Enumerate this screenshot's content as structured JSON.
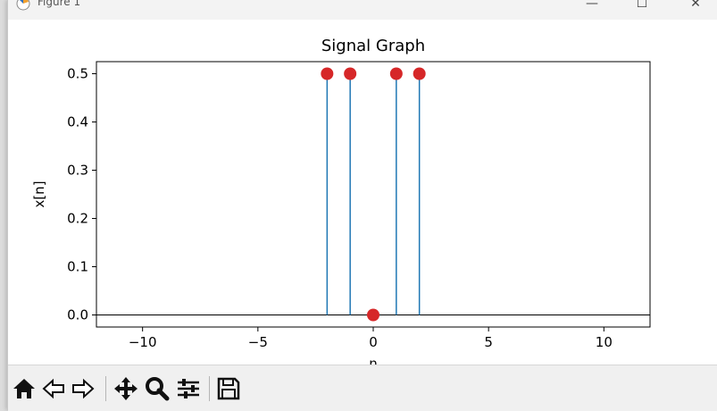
{
  "window": {
    "title": "Figure 1",
    "minimize_glyph": "—",
    "maximize_glyph": "☐",
    "close_glyph": "✕"
  },
  "toolbar": {
    "icons": [
      "home-icon",
      "back-icon",
      "forward-icon",
      "pan-icon",
      "zoom-icon",
      "configure-subplots-icon",
      "save-icon"
    ]
  },
  "chart_data": {
    "type": "stem",
    "title": "Signal Graph",
    "xlabel": "n",
    "ylabel": "x[n]",
    "x": [
      -2,
      -1,
      0,
      1,
      2
    ],
    "y": [
      0.5,
      0.5,
      0,
      0.5,
      0.5
    ],
    "xlim": [
      -12,
      12
    ],
    "ylim": [
      -0.025,
      0.525
    ],
    "xticks": [
      -10,
      -5,
      0,
      5,
      10
    ],
    "xtick_labels": [
      "−10",
      "−5",
      "0",
      "5",
      "10"
    ],
    "yticks": [
      0,
      0.1,
      0.2,
      0.3,
      0.4,
      0.5
    ],
    "ytick_labels": [
      "0.0",
      "0.1",
      "0.2",
      "0.3",
      "0.4",
      "0.5"
    ],
    "baseline": 0,
    "grid": false,
    "colors": {
      "stem": "#1f77b4",
      "marker": "#d62728",
      "baseline": "#000000"
    }
  }
}
